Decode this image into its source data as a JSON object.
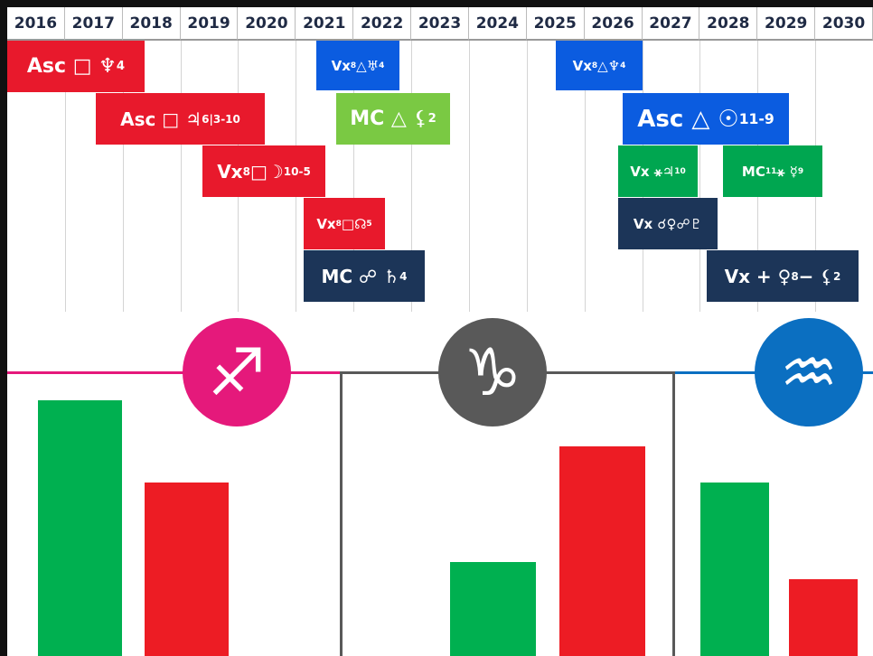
{
  "timeline": {
    "years": [
      "2016",
      "2017",
      "2018",
      "2019",
      "2020",
      "2021",
      "2022",
      "2023",
      "2024",
      "2025",
      "2026",
      "2027",
      "2028",
      "2029",
      "2030"
    ],
    "events": [
      {
        "label": [
          "Asc □ ♆",
          "4"
        ],
        "color": "#e8192c"
      },
      {
        "label": [
          "Asc □ ♃",
          "6|3-10"
        ],
        "color": "#e8192c"
      },
      {
        "label": [
          "Vx",
          "8",
          " □☽",
          "10-5"
        ],
        "color": "#e8192c"
      },
      {
        "label": [
          "Vx",
          "8",
          "□☊",
          "5"
        ],
        "color": "#e8192c"
      },
      {
        "label": [
          "MC ☍ ♄",
          "4"
        ],
        "color": "#1c3558"
      },
      {
        "label": [
          "Vx",
          "8",
          " △♅",
          "4"
        ],
        "color": "#0b5ce0"
      },
      {
        "label": [
          "MC △ ⚸",
          "2"
        ],
        "color": "#7ac943"
      },
      {
        "label": [
          "Vx",
          "8",
          " △♆",
          "4"
        ],
        "color": "#0b5ce0"
      },
      {
        "label": [
          "Asc △ ☉",
          "11-9"
        ],
        "color": "#0b5ce0"
      },
      {
        "label": [
          "Vx ⚹♃",
          "10"
        ],
        "color": "#00a650"
      },
      {
        "label": [
          "MC",
          "11",
          " ⚹ ☿",
          "9"
        ],
        "color": "#00a650"
      },
      {
        "label": [
          "Vx ☌♀☍♇"
        ],
        "color": "#1c3558"
      },
      {
        "label": [
          "Vx + ♀",
          "8",
          " − ⚸",
          "2"
        ],
        "color": "#1c3558"
      }
    ]
  },
  "chart_data": {
    "type": "bar",
    "ylim": [
      0,
      100
    ],
    "series_colors": [
      "#00b050",
      "#ed1c24"
    ],
    "signs": [
      {
        "symbol": "♐",
        "color": "#e5197b",
        "values": [
          90,
          61
        ]
      },
      {
        "symbol": "♑",
        "color": "#595959",
        "values": [
          33,
          74
        ]
      },
      {
        "symbol": "♒",
        "color": "#0b6fc1",
        "values": [
          61,
          27
        ]
      }
    ]
  }
}
